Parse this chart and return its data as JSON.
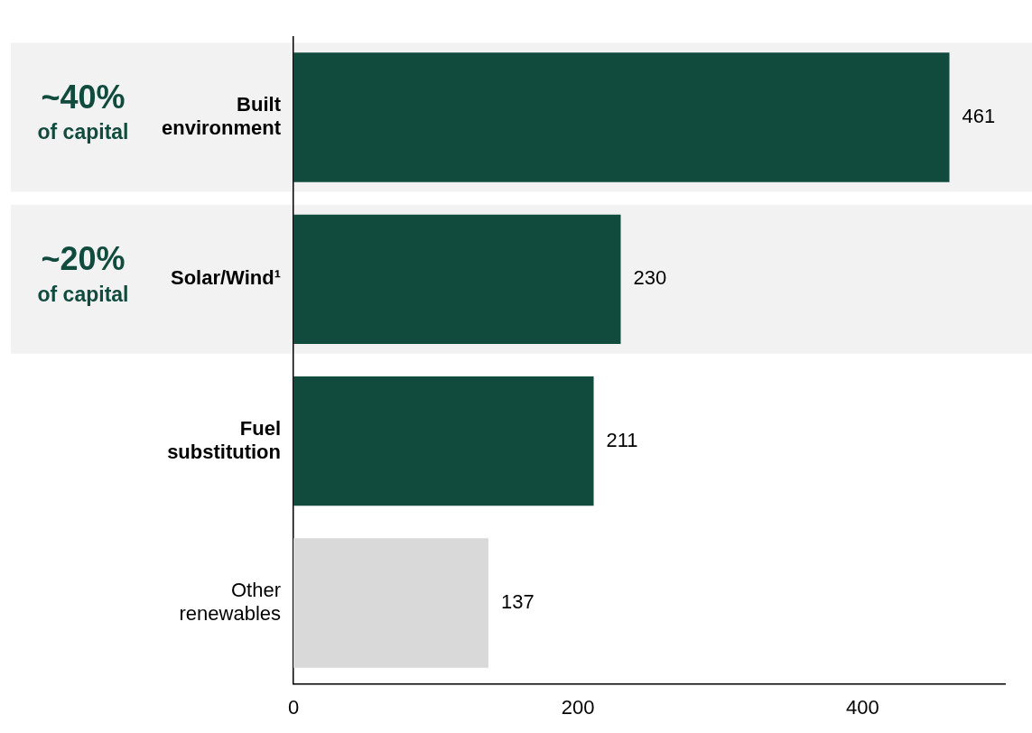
{
  "chart_data": {
    "type": "bar",
    "orientation": "horizontal",
    "categories": [
      "Built environment",
      "Solar/Wind¹",
      "Fuel substitution",
      "Other renewables"
    ],
    "values": [
      461,
      230,
      211,
      137
    ],
    "colors": [
      "#114b3e",
      "#114b3e",
      "#114b3e",
      "#d9d9d9"
    ],
    "xlim": [
      0,
      500
    ],
    "xticks": [
      0,
      200,
      400
    ],
    "grid": false,
    "legend": false,
    "data_labels": true,
    "bands": [
      {
        "axis": "y",
        "from": "Built environment",
        "to": "Built environment",
        "label": "~40%\nof capital",
        "color": "#f2f2f2"
      },
      {
        "axis": "y",
        "from": "Solar/Wind¹",
        "to": "Solar/Wind¹",
        "label": "~20%\nof capital",
        "color": "#f2f2f2"
      }
    ]
  }
}
